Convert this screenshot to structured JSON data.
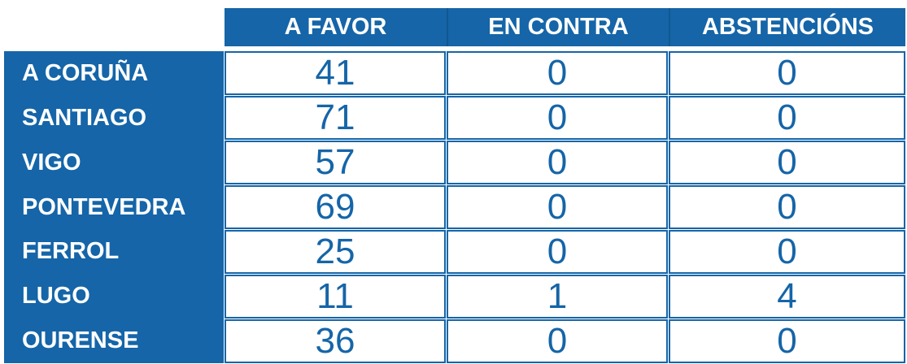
{
  "chart_data": {
    "type": "table",
    "columns": [
      "A FAVOR",
      "EN CONTRA",
      "ABSTENCIÓNS"
    ],
    "row_labels": [
      "A CORUÑA",
      "SANTIAGO",
      "VIGO",
      "PONTEVEDRA",
      "FERROL",
      "LUGO",
      "OURENSE"
    ],
    "values": [
      [
        41,
        0,
        0
      ],
      [
        71,
        0,
        0
      ],
      [
        57,
        0,
        0
      ],
      [
        69,
        0,
        0
      ],
      [
        25,
        0,
        0
      ],
      [
        11,
        1,
        4
      ],
      [
        36,
        0,
        0
      ]
    ],
    "layout": "row labels on left (blue column), column headers on top (blue band), white value cells with blue borders, grid on"
  },
  "colors": {
    "primary_blue": "#1565a8",
    "header_divider": "#11588f",
    "cell_text": "#1565a8",
    "page_bg": "#ffffff"
  }
}
